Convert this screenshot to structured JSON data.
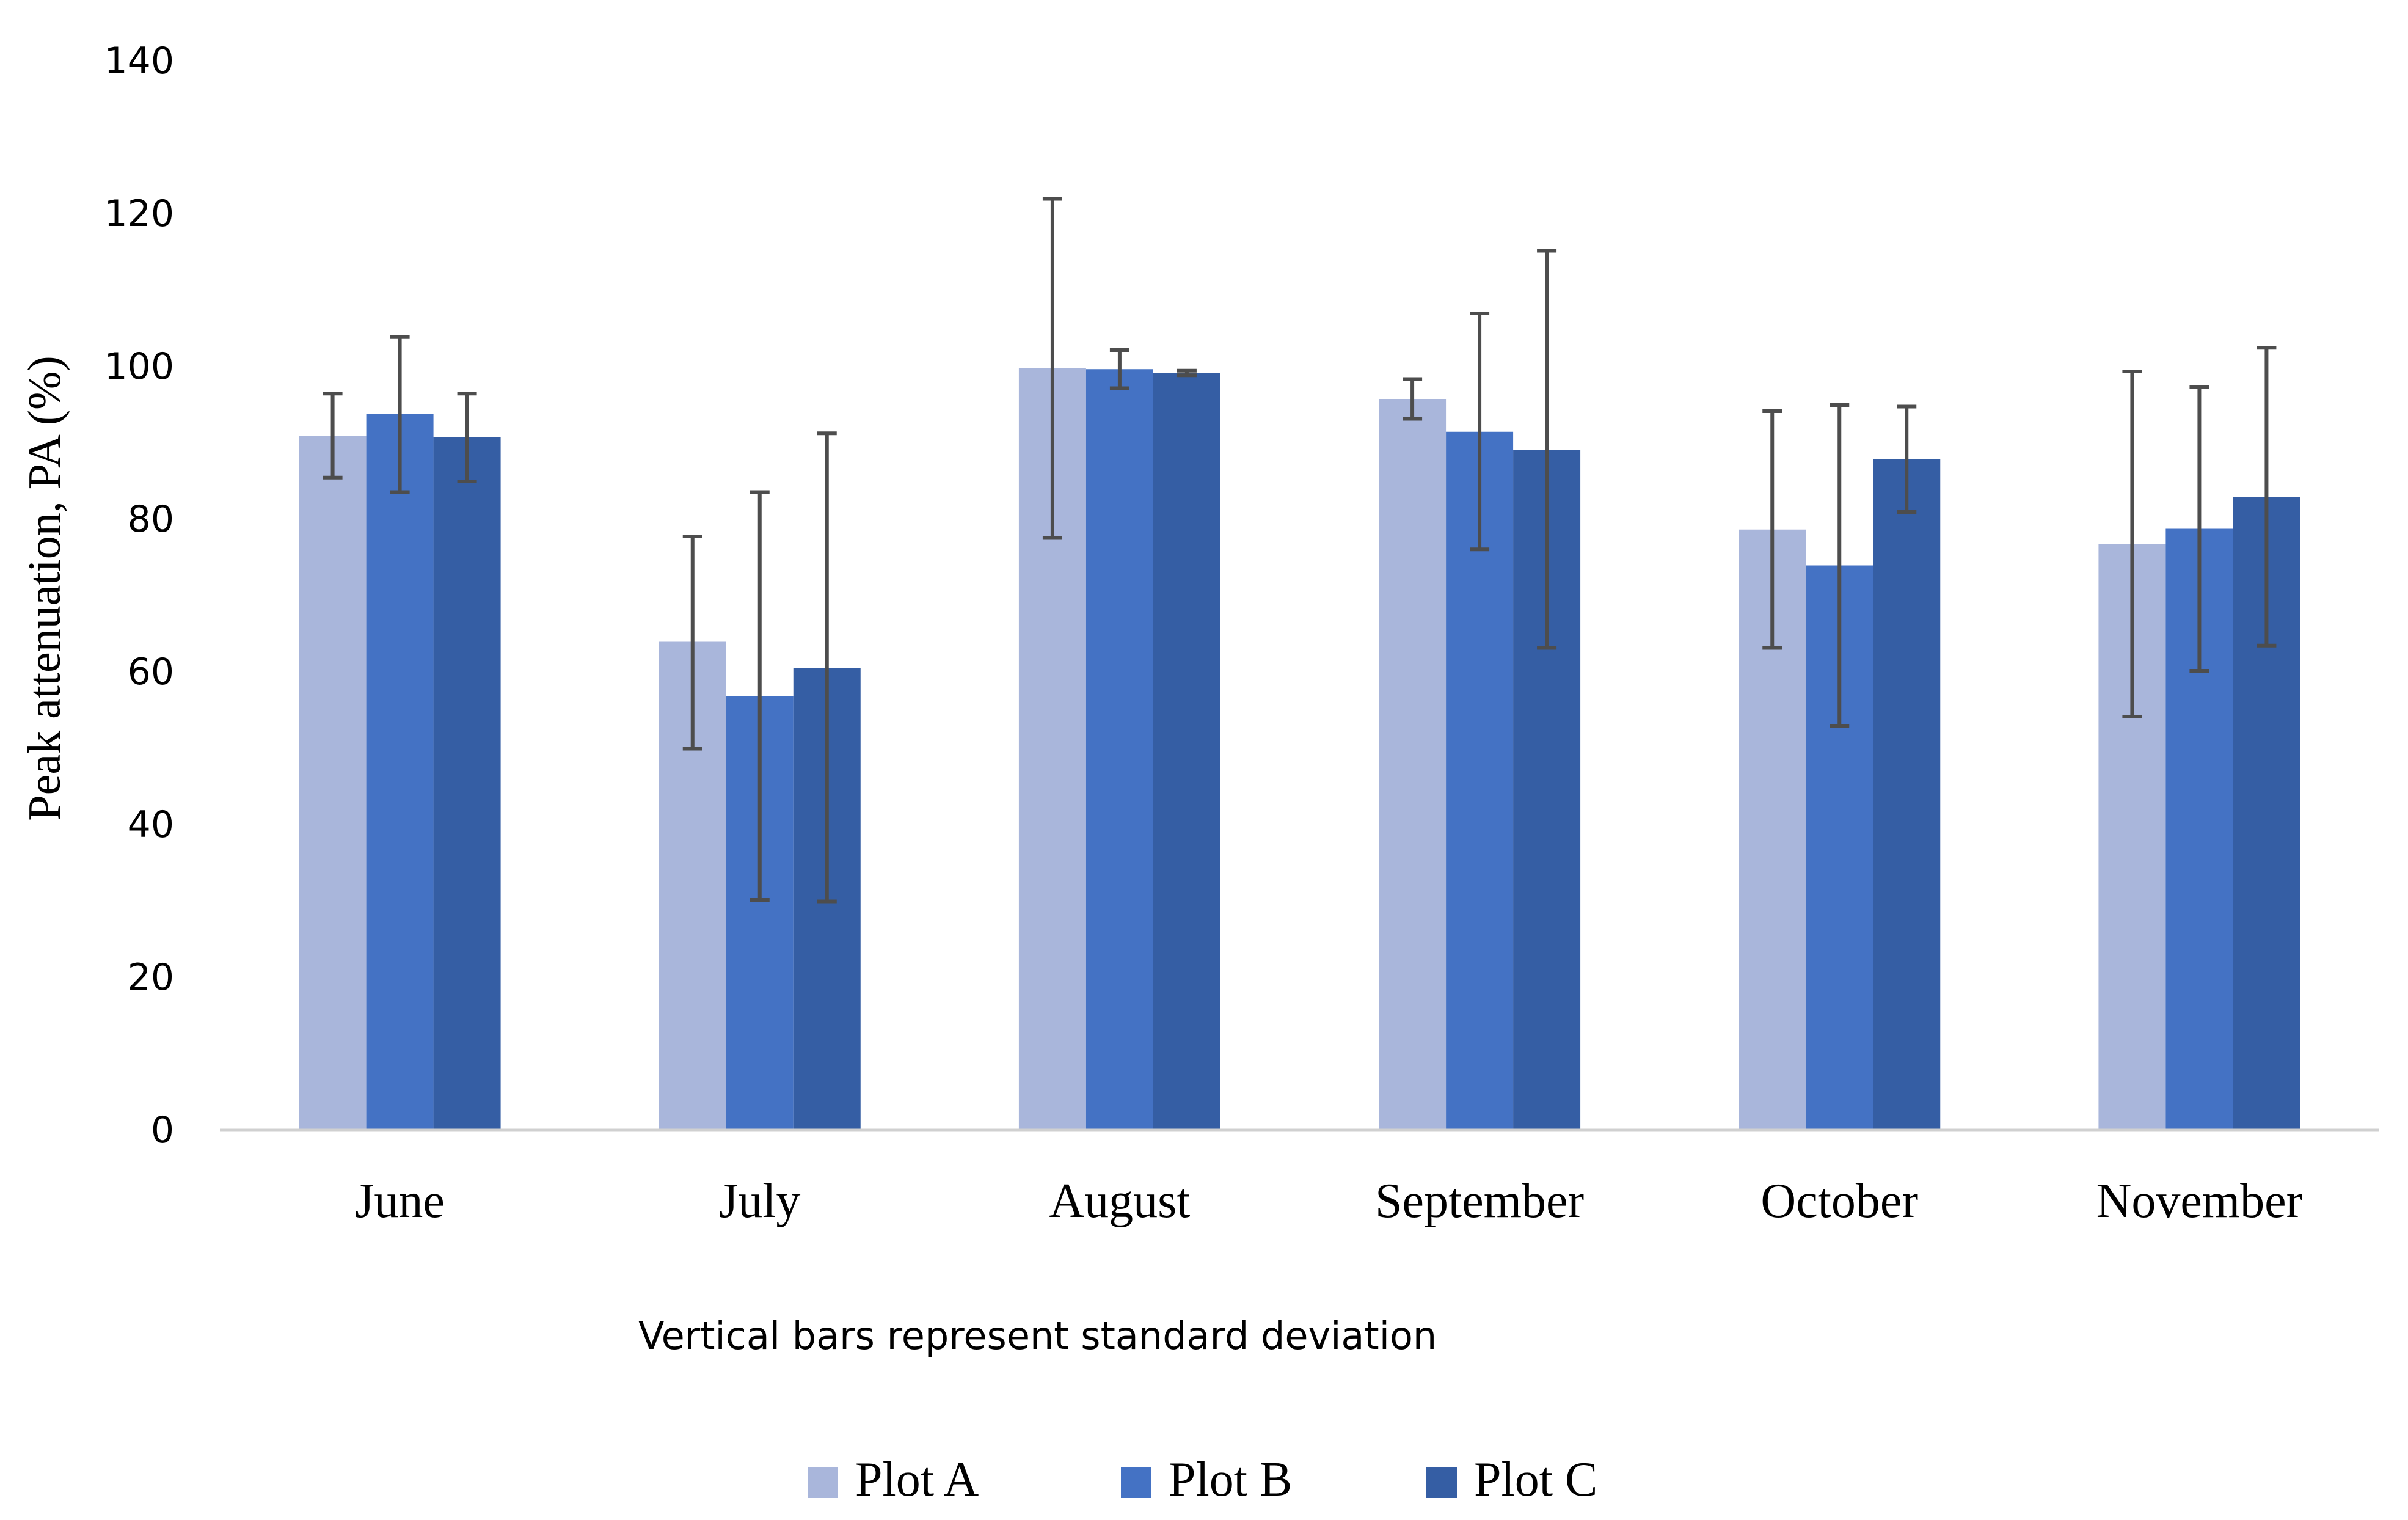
{
  "chart_data": {
    "type": "bar",
    "title": "",
    "xlabel": "",
    "ylabel": "Peak attenuation, PA (%)",
    "note": "Vertical bars represent standard deviation",
    "ylim": [
      0,
      140
    ],
    "yticks": [
      0,
      20,
      40,
      60,
      80,
      100,
      120,
      140
    ],
    "grid": false,
    "legend_position": "bottom-center",
    "categories": [
      "June",
      "July",
      "August",
      "September",
      "October",
      "November"
    ],
    "series": [
      {
        "name": "Plot A",
        "color": "#A9B6DB",
        "values": [
          90.8,
          63.8,
          99.6,
          95.6,
          78.5,
          76.6
        ],
        "error_low": [
          85.3,
          49.8,
          77.4,
          93.0,
          63.0,
          54.0
        ],
        "error_high": [
          96.3,
          77.6,
          121.8,
          98.2,
          94.0,
          99.2
        ]
      },
      {
        "name": "Plot B",
        "color": "#4472C4",
        "values": [
          93.6,
          56.7,
          99.5,
          91.3,
          73.8,
          78.6
        ],
        "error_low": [
          83.4,
          30.0,
          97.0,
          75.9,
          52.8,
          60.0
        ],
        "error_high": [
          103.7,
          83.4,
          102.0,
          106.8,
          94.8,
          97.2
        ]
      },
      {
        "name": "Plot C",
        "color": "#355EA4",
        "values": [
          90.6,
          60.4,
          99.0,
          88.9,
          87.7,
          82.8
        ],
        "error_low": [
          84.8,
          29.8,
          98.7,
          63.0,
          80.8,
          63.3
        ],
        "error_high": [
          96.3,
          91.1,
          99.3,
          115.0,
          94.6,
          102.3
        ]
      }
    ]
  }
}
